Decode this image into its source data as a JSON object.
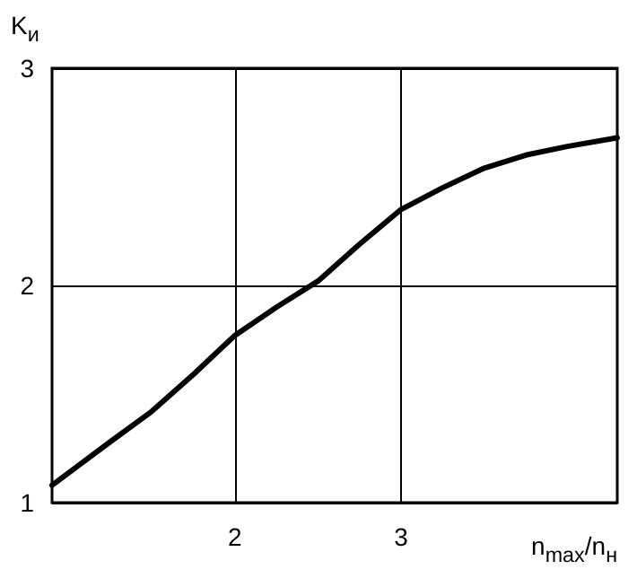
{
  "chart_data": {
    "type": "line",
    "xlabel": "n$_{max}$/n$_{н}$",
    "ylabel": "K$_{и}$",
    "x": [
      0.9,
      1.25,
      1.5,
      1.75,
      2,
      2.25,
      2.5,
      2.75,
      3,
      3.25,
      3.5,
      3.75,
      4,
      4.3
    ],
    "series": [
      {
        "color": "#000000",
        "values": [
          1.08,
          1.28,
          1.42,
          1.59,
          1.77,
          1.9,
          2.02,
          2.19,
          2.35,
          2.45,
          2.54,
          2.6,
          2.64,
          2.68
        ]
      }
    ],
    "xlim": [
      0.9,
      4.3
    ],
    "xticks": [
      2,
      3
    ],
    "ylim": [
      1,
      3
    ],
    "yticks": [
      1,
      2,
      3
    ],
    "grid": true,
    "marker": "none",
    "line_style": "solid"
  }
}
